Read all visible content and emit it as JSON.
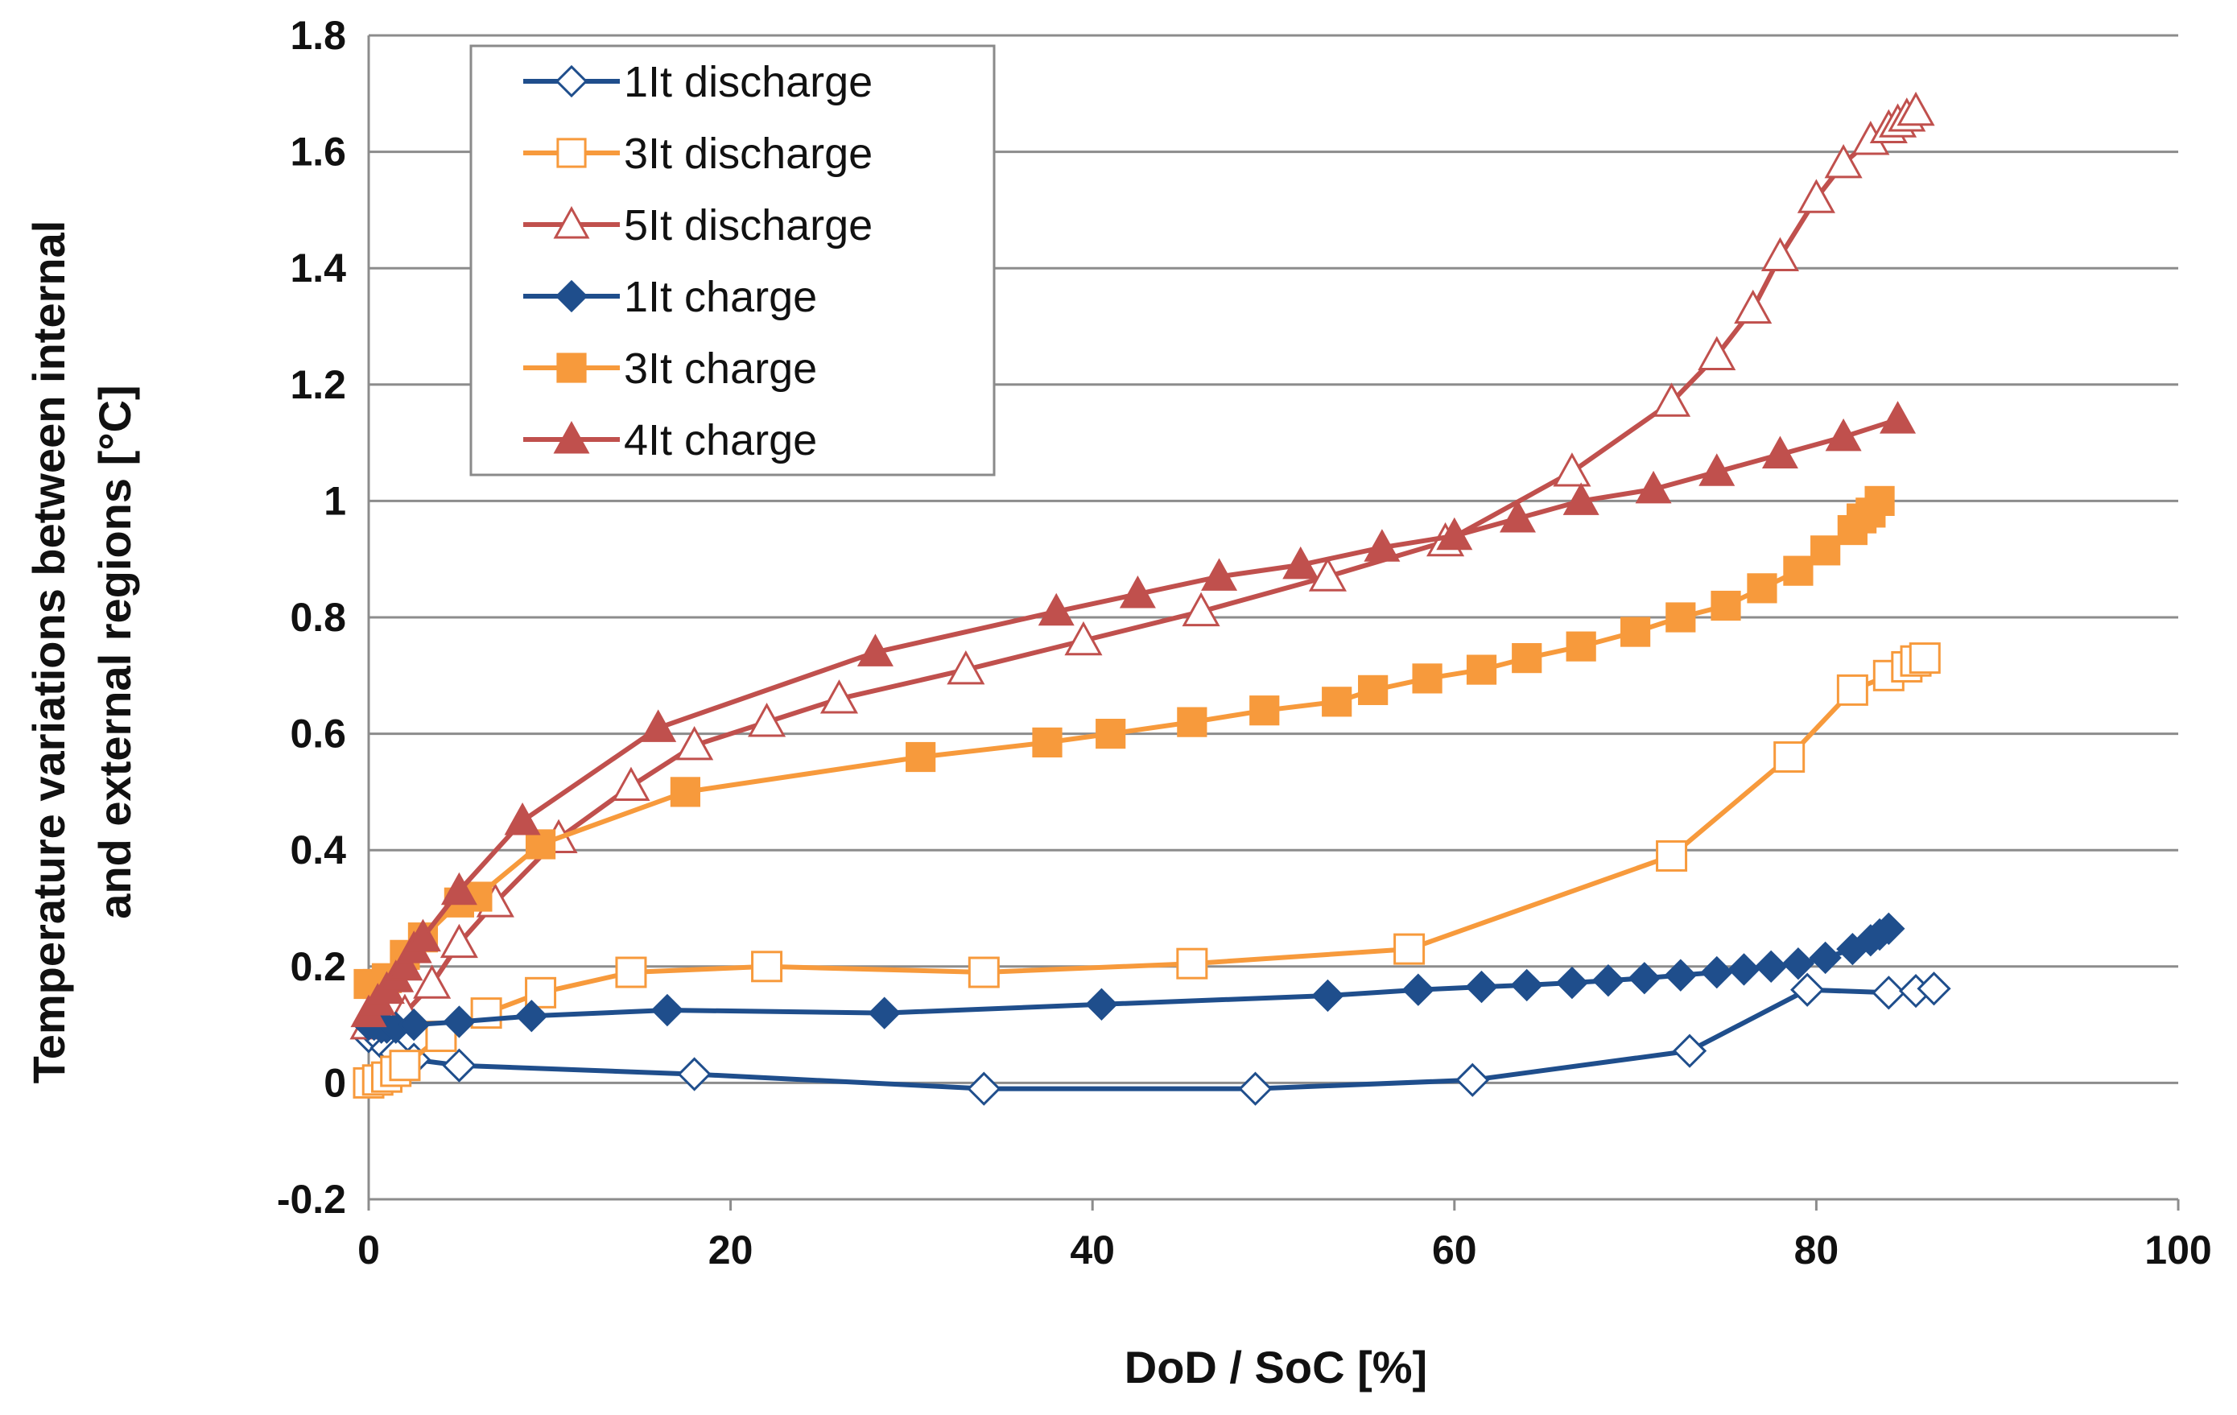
{
  "chart_data": {
    "type": "line",
    "title": "",
    "xlabel": "DoD / SoC [%]",
    "ylabel_lines": [
      "Temperature variations between internal",
      "and external regions [°C]"
    ],
    "xlim": [
      0,
      100
    ],
    "ylim": [
      -0.2,
      1.8
    ],
    "xticks": [
      0,
      20,
      40,
      60,
      80,
      100
    ],
    "yticks": [
      -0.2,
      0,
      0.2,
      0.4,
      0.6,
      0.8,
      1,
      1.2,
      1.4,
      1.6,
      1.8
    ],
    "ytick_labels": [
      "-0.2",
      "0",
      "0.2",
      "0.4",
      "0.6",
      "0.8",
      "1",
      "1.2",
      "1.4",
      "1.6",
      "1.8"
    ],
    "grid": "horizontal",
    "legend_position": "top-left",
    "series": [
      {
        "name": "1It discharge",
        "color": "#1f4e8c",
        "marker": "diamond",
        "filled": false,
        "points": [
          [
            0,
            0.08
          ],
          [
            0.5,
            0.08
          ],
          [
            1,
            0.06
          ],
          [
            1.5,
            0.05
          ],
          [
            2.5,
            0.04
          ],
          [
            5,
            0.03
          ],
          [
            18,
            0.015
          ],
          [
            34,
            -0.01
          ],
          [
            49,
            -0.01
          ],
          [
            61,
            0.005
          ],
          [
            73,
            0.055
          ],
          [
            79.5,
            0.16
          ],
          [
            84,
            0.155
          ],
          [
            85.5,
            0.158
          ],
          [
            86.5,
            0.162
          ]
        ]
      },
      {
        "name": "3It discharge",
        "color": "#f79a3c",
        "marker": "square",
        "filled": false,
        "points": [
          [
            0,
            0.0
          ],
          [
            0.5,
            0.005
          ],
          [
            1,
            0.01
          ],
          [
            1.5,
            0.02
          ],
          [
            2,
            0.03
          ],
          [
            4,
            0.08
          ],
          [
            6.5,
            0.12
          ],
          [
            9.5,
            0.155
          ],
          [
            14.5,
            0.19
          ],
          [
            22,
            0.2
          ],
          [
            34,
            0.19
          ],
          [
            45.5,
            0.205
          ],
          [
            57.5,
            0.23
          ],
          [
            72,
            0.39
          ],
          [
            78.5,
            0.56
          ],
          [
            82,
            0.675
          ],
          [
            84,
            0.7
          ],
          [
            85,
            0.715
          ],
          [
            85.5,
            0.725
          ],
          [
            86,
            0.73
          ]
        ]
      },
      {
        "name": "5It  discharge",
        "color": "#c0504d",
        "marker": "triangle",
        "filled": false,
        "points": [
          [
            0,
            0.1
          ],
          [
            1,
            0.11
          ],
          [
            2,
            0.12
          ],
          [
            3.5,
            0.17
          ],
          [
            5,
            0.24
          ],
          [
            7,
            0.31
          ],
          [
            10.5,
            0.42
          ],
          [
            14.5,
            0.51
          ],
          [
            18,
            0.58
          ],
          [
            22,
            0.62
          ],
          [
            26,
            0.66
          ],
          [
            33,
            0.71
          ],
          [
            39.5,
            0.76
          ],
          [
            46,
            0.81
          ],
          [
            53,
            0.87
          ],
          [
            59.5,
            0.93
          ],
          [
            66.5,
            1.05
          ],
          [
            72,
            1.17
          ],
          [
            74.5,
            1.25
          ],
          [
            76.5,
            1.33
          ],
          [
            78,
            1.42
          ],
          [
            80,
            1.52
          ],
          [
            81.5,
            1.58
          ],
          [
            83,
            1.62
          ],
          [
            84,
            1.64
          ],
          [
            84.5,
            1.65
          ],
          [
            85,
            1.66
          ],
          [
            85.5,
            1.67
          ]
        ]
      },
      {
        "name": "1It charge",
        "color": "#1f4e8c",
        "marker": "diamond",
        "filled": true,
        "points": [
          [
            0,
            0.1
          ],
          [
            0.3,
            0.1
          ],
          [
            0.7,
            0.095
          ],
          [
            1,
            0.095
          ],
          [
            1.5,
            0.095
          ],
          [
            2.5,
            0.1
          ],
          [
            5,
            0.105
          ],
          [
            9,
            0.115
          ],
          [
            16.5,
            0.125
          ],
          [
            28.5,
            0.12
          ],
          [
            40.5,
            0.135
          ],
          [
            53,
            0.15
          ],
          [
            58,
            0.16
          ],
          [
            61.5,
            0.165
          ],
          [
            64,
            0.168
          ],
          [
            66.5,
            0.172
          ],
          [
            68.5,
            0.176
          ],
          [
            70.5,
            0.18
          ],
          [
            72.5,
            0.185
          ],
          [
            74.5,
            0.19
          ],
          [
            76,
            0.195
          ],
          [
            77.5,
            0.2
          ],
          [
            79,
            0.205
          ],
          [
            80.5,
            0.215
          ],
          [
            82,
            0.23
          ],
          [
            83,
            0.245
          ],
          [
            83.5,
            0.255
          ],
          [
            84,
            0.265
          ]
        ]
      },
      {
        "name": "3It charge",
        "color": "#f79a3c",
        "marker": "square",
        "filled": true,
        "points": [
          [
            0,
            0.17
          ],
          [
            0.5,
            0.17
          ],
          [
            1,
            0.18
          ],
          [
            2,
            0.22
          ],
          [
            3,
            0.25
          ],
          [
            5,
            0.31
          ],
          [
            6,
            0.32
          ],
          [
            9.5,
            0.41
          ],
          [
            17.5,
            0.5
          ],
          [
            30.5,
            0.56
          ],
          [
            37.5,
            0.585
          ],
          [
            41,
            0.6
          ],
          [
            45.5,
            0.62
          ],
          [
            49.5,
            0.64
          ],
          [
            53.5,
            0.655
          ],
          [
            55.5,
            0.675
          ],
          [
            58.5,
            0.695
          ],
          [
            61.5,
            0.71
          ],
          [
            64,
            0.73
          ],
          [
            67,
            0.75
          ],
          [
            70,
            0.775
          ],
          [
            72.5,
            0.8
          ],
          [
            75,
            0.82
          ],
          [
            77,
            0.85
          ],
          [
            79,
            0.88
          ],
          [
            80.5,
            0.915
          ],
          [
            82,
            0.95
          ],
          [
            82.5,
            0.97
          ],
          [
            83,
            0.98
          ],
          [
            83.5,
            1.0
          ]
        ]
      },
      {
        "name": "4It charge",
        "color": "#c0504d",
        "marker": "triangle",
        "filled": true,
        "points": [
          [
            0,
            0.12
          ],
          [
            0.5,
            0.14
          ],
          [
            1,
            0.16
          ],
          [
            1.5,
            0.18
          ],
          [
            2,
            0.2
          ],
          [
            2.5,
            0.23
          ],
          [
            3,
            0.25
          ],
          [
            5,
            0.33
          ],
          [
            8.5,
            0.45
          ],
          [
            16,
            0.61
          ],
          [
            28,
            0.74
          ],
          [
            38,
            0.81
          ],
          [
            42.5,
            0.84
          ],
          [
            47,
            0.87
          ],
          [
            51.5,
            0.89
          ],
          [
            56,
            0.92
          ],
          [
            60,
            0.94
          ],
          [
            63.5,
            0.97
          ],
          [
            67,
            1.0
          ],
          [
            71,
            1.02
          ],
          [
            74.5,
            1.05
          ],
          [
            78,
            1.08
          ],
          [
            81.5,
            1.11
          ],
          [
            84.5,
            1.14
          ]
        ]
      }
    ]
  }
}
